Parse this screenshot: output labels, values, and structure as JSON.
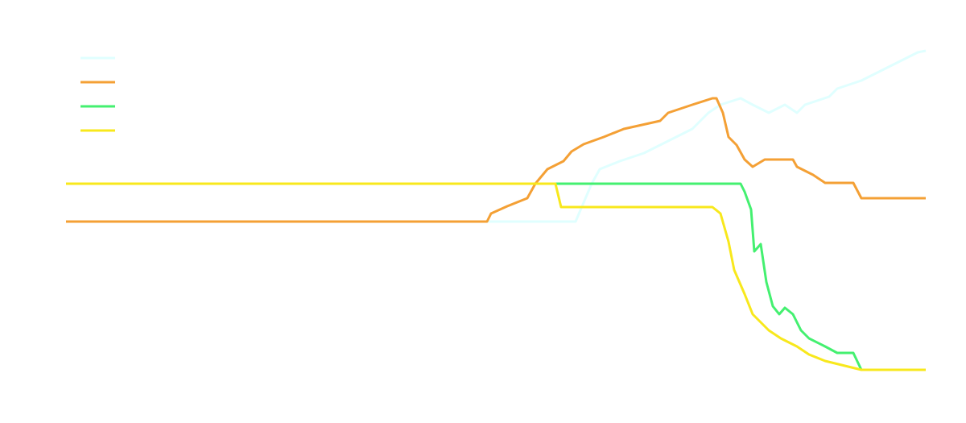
{
  "chart_data": {
    "type": "line",
    "series": [
      {
        "color": "#e0ffff",
        "x": [
          0,
          633,
          653,
          663,
          688,
          718,
          738,
          758,
          778,
          788,
          798,
          813,
          838,
          853,
          873,
          893,
          908,
          918,
          948,
          958,
          988,
          1008,
          1028,
          1058,
          1068
        ],
        "values": [
          184,
          184,
          231,
          249,
          259,
          269,
          279,
          289,
          299,
          309,
          319,
          329,
          337,
          329,
          319,
          329,
          319,
          329,
          339,
          349,
          359,
          369,
          379,
          394,
          396
        ]
      },
      {
        "color": "#f4a035",
        "x": [
          0,
          523,
          528,
          548,
          573,
          583,
          598,
          618,
          628,
          643,
          668,
          693,
          738,
          748,
          778,
          803,
          808,
          816,
          823,
          833,
          843,
          853,
          868,
          903,
          908,
          928,
          943,
          978,
          988,
          1068
        ],
        "values": [
          184,
          184,
          194,
          203,
          213,
          231,
          249,
          259,
          271,
          280,
          289,
          299,
          309,
          319,
          329,
          337,
          337,
          319,
          289,
          279,
          261,
          252,
          261,
          261,
          252,
          242,
          232,
          232,
          213,
          213
        ]
      },
      {
        "color": "#44f070",
        "x": [
          0,
          838,
          843,
          851,
          855,
          863,
          870,
          878,
          886,
          893,
          903,
          913,
          923,
          943,
          958,
          978,
          988,
          1068
        ],
        "values": [
          231,
          231,
          221,
          199,
          147,
          156,
          109,
          79,
          69,
          77,
          69,
          49,
          39,
          29,
          21,
          21,
          0,
          0
        ]
      },
      {
        "color": "#f8e81c",
        "x": [
          0,
          608,
          615,
          803,
          813,
          823,
          830,
          843,
          853,
          863,
          873,
          888,
          908,
          923,
          943,
          988,
          1068
        ],
        "values": [
          231,
          231,
          202,
          202,
          194,
          159,
          124,
          94,
          69,
          59,
          49,
          39,
          29,
          19,
          11,
          0,
          0
        ]
      }
    ]
  }
}
